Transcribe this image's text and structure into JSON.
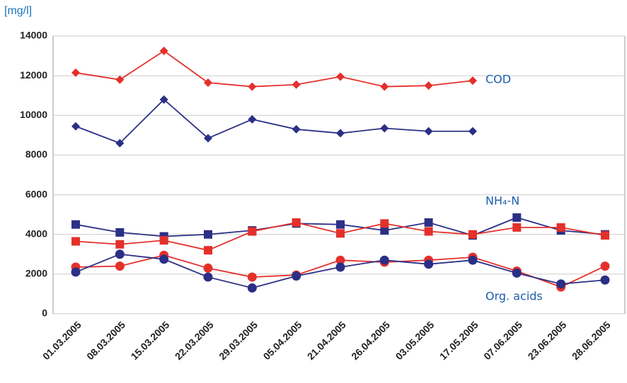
{
  "chart_data": {
    "type": "line",
    "y_label": "[mg/l]",
    "categories": [
      "01.03.2005",
      "08.03.2005",
      "15.03.2005",
      "22.03.2005",
      "29.03.2005",
      "05.04.2005",
      "21.04.2005",
      "26.04.2005",
      "03.05.2005",
      "17.05.2005",
      "07.06.2005",
      "23.06.2005",
      "28.06.2005"
    ],
    "series": [
      {
        "color": "#e4302b",
        "marker": "diamond",
        "values": [
          12150,
          11800,
          13250,
          11650,
          11450,
          11550,
          11950,
          11450,
          11500,
          11750,
          null,
          null,
          null
        ]
      },
      {
        "color": "#2b2f85",
        "marker": "diamond",
        "values": [
          9450,
          8600,
          10800,
          8850,
          9800,
          9300,
          9100,
          9350,
          9200,
          9200,
          null,
          null,
          null
        ]
      },
      {
        "color": "#2b2f85",
        "marker": "square",
        "values": [
          4500,
          4100,
          3900,
          4000,
          4200,
          4550,
          4500,
          4200,
          4600,
          3950,
          4850,
          4200,
          4000
        ]
      },
      {
        "color": "#e4302b",
        "marker": "square",
        "values": [
          3650,
          3500,
          3700,
          3200,
          4150,
          4600,
          4050,
          4550,
          4150,
          4000,
          4350,
          4350,
          3950
        ]
      },
      {
        "color": "#e4302b",
        "marker": "circle",
        "values": [
          2350,
          2400,
          2950,
          2300,
          1850,
          1950,
          2700,
          2600,
          2700,
          2850,
          2150,
          1350,
          2400
        ]
      },
      {
        "color": "#2b2f85",
        "marker": "circle",
        "values": [
          2100,
          3000,
          2750,
          1850,
          1300,
          1900,
          2350,
          2700,
          2500,
          2700,
          2050,
          1500,
          1700
        ]
      }
    ],
    "annotations": [
      "COD",
      "NH₄-N",
      "Org. acids"
    ],
    "ylim": [
      0,
      14000
    ],
    "yticks": [
      0,
      2000,
      4000,
      6000,
      8000,
      10000,
      12000,
      14000
    ],
    "grid": true
  }
}
